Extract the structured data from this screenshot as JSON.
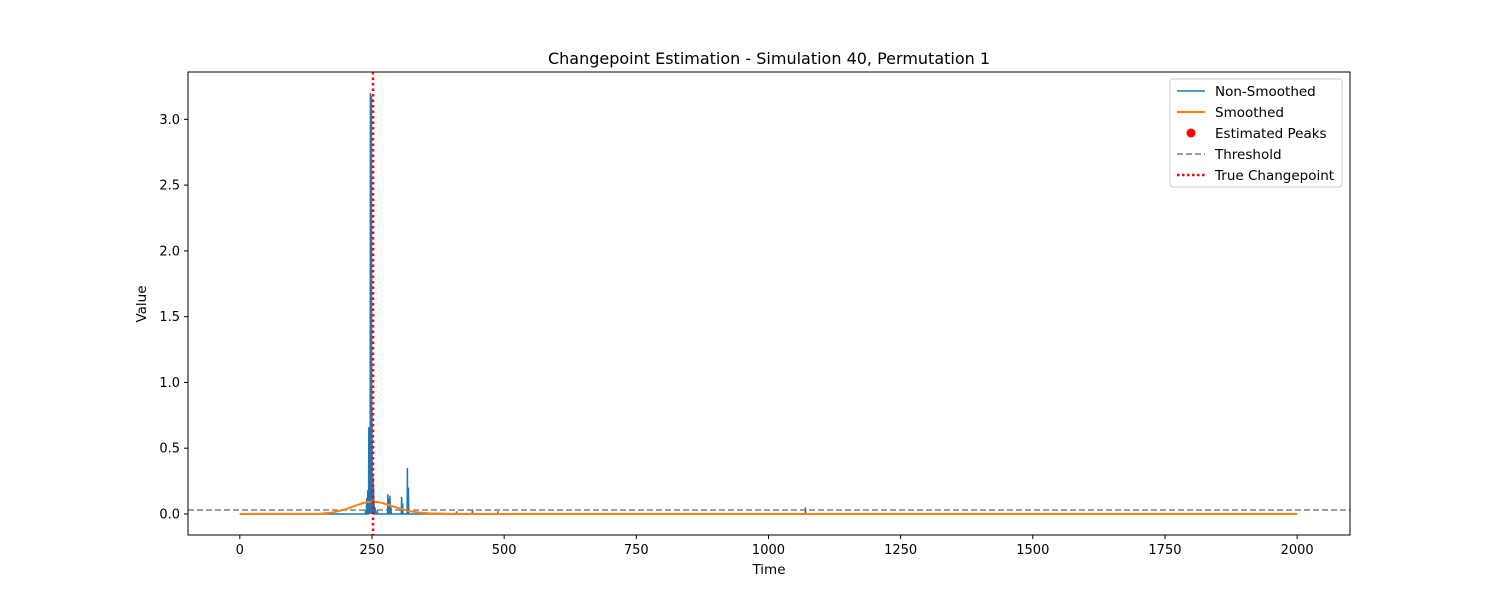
{
  "chart_data": {
    "type": "line",
    "title": "Changepoint Estimation - Simulation 40, Permutation 1",
    "xlabel": "Time",
    "ylabel": "Value",
    "xlim": [
      -98,
      2100
    ],
    "ylim": [
      -0.16,
      3.36
    ],
    "xticks": [
      0,
      250,
      500,
      750,
      1000,
      1250,
      1500,
      1750,
      2000
    ],
    "yticks": [
      0.0,
      0.5,
      1.0,
      1.5,
      2.0,
      2.5,
      3.0
    ],
    "xtick_labels": [
      "0",
      "250",
      "500",
      "750",
      "1000",
      "1250",
      "1500",
      "1750",
      "2000"
    ],
    "ytick_labels": [
      "0.0",
      "0.5",
      "1.0",
      "1.5",
      "2.0",
      "2.5",
      "3.0"
    ],
    "legend_position": "upper right",
    "series": [
      {
        "name": "Non-Smoothed",
        "color": "#1f77b4",
        "style": "solid",
        "spikes": [
          [
            238,
            0.03
          ],
          [
            240,
            0.12
          ],
          [
            242,
            0.18
          ],
          [
            244,
            0.66
          ],
          [
            245,
            0.2
          ],
          [
            246,
            0.55
          ],
          [
            247,
            3.2
          ],
          [
            248,
            1.2
          ],
          [
            249,
            3.18
          ],
          [
            250,
            0.8
          ],
          [
            251,
            0.3
          ],
          [
            252,
            0.28
          ],
          [
            253,
            0.2
          ],
          [
            254,
            0.1
          ],
          [
            256,
            0.05
          ],
          [
            260,
            0.03
          ],
          [
            280,
            0.15
          ],
          [
            282,
            0.12
          ],
          [
            284,
            0.14
          ],
          [
            286,
            0.05
          ],
          [
            306,
            0.13
          ],
          [
            308,
            0.08
          ],
          [
            317,
            0.35
          ],
          [
            319,
            0.2
          ],
          [
            410,
            0.02
          ],
          [
            440,
            0.03
          ],
          [
            488,
            0.02
          ],
          [
            1070,
            0.05
          ]
        ]
      },
      {
        "name": "Smoothed",
        "color": "#ff7f0e",
        "style": "solid",
        "x": [
          0,
          150,
          175,
          200,
          220,
          235,
          250,
          265,
          280,
          300,
          320,
          340,
          360,
          400,
          500,
          1000,
          1500,
          2000
        ],
        "y": [
          0.0,
          0.002,
          0.01,
          0.035,
          0.065,
          0.085,
          0.095,
          0.088,
          0.07,
          0.045,
          0.022,
          0.01,
          0.004,
          0.001,
          0.0,
          0.0,
          0.0,
          0.0
        ]
      },
      {
        "name": "Estimated Peaks",
        "color": "#ff0000",
        "style": "marker",
        "points": []
      },
      {
        "name": "Threshold",
        "color": "#808080",
        "style": "dashed",
        "y": 0.03
      },
      {
        "name": "True Changepoint",
        "color": "#ff0000",
        "style": "dotted",
        "x": 252
      }
    ]
  }
}
